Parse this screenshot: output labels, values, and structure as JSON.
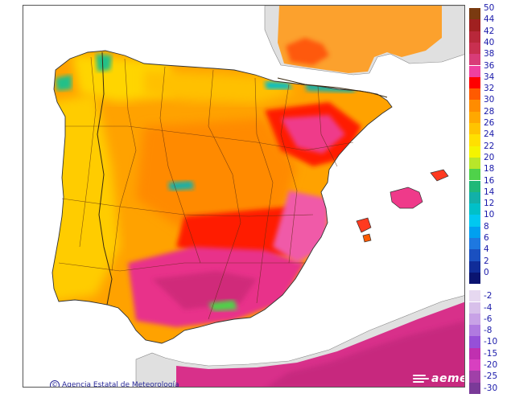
{
  "map": {
    "region": "Iberian Peninsula and Balearic Islands",
    "sea_color": "#ffffff",
    "background_land_color": "#e6e6e6",
    "border_color": "#444444"
  },
  "credit": {
    "text": "Agencia Estatal de Meteorología",
    "symbol": "©"
  },
  "logo": {
    "text": "aemet"
  },
  "legend": {
    "positive_scale": [
      {
        "label": "50",
        "color": "#7a3a10"
      },
      {
        "label": "44",
        "color": "#a02020"
      },
      {
        "label": "42",
        "color": "#b8283a"
      },
      {
        "label": "40",
        "color": "#c83050"
      },
      {
        "label": "38",
        "color": "#d83c78"
      },
      {
        "label": "36",
        "color": "#ef40a0"
      },
      {
        "label": "34",
        "color": "#ff0000"
      },
      {
        "label": "32",
        "color": "#ff5a00"
      },
      {
        "label": "30",
        "color": "#ff8c00"
      },
      {
        "label": "28",
        "color": "#ffa800"
      },
      {
        "label": "26",
        "color": "#ffc400"
      },
      {
        "label": "24",
        "color": "#ffe000"
      },
      {
        "label": "22",
        "color": "#f4f400"
      },
      {
        "label": "20",
        "color": "#b8e62a"
      },
      {
        "label": "18",
        "color": "#4fd24a"
      },
      {
        "label": "16",
        "color": "#20b878"
      },
      {
        "label": "14",
        "color": "#12b0a8"
      },
      {
        "label": "12",
        "color": "#00c0c8"
      },
      {
        "label": "10",
        "color": "#00c8f0"
      },
      {
        "label": "8",
        "color": "#00a0f0"
      },
      {
        "label": "6",
        "color": "#1e78e0"
      },
      {
        "label": "4",
        "color": "#1a50c0"
      },
      {
        "label": "2",
        "color": "#102c98"
      },
      {
        "label": "0",
        "color": "#0a1470"
      }
    ],
    "negative_scale": [
      {
        "label": "-2",
        "color": "#e6d8f0"
      },
      {
        "label": "-4",
        "color": "#d8c0ea"
      },
      {
        "label": "-6",
        "color": "#c8a2e6"
      },
      {
        "label": "-8",
        "color": "#b07ae0"
      },
      {
        "label": "-10",
        "color": "#9650d8"
      },
      {
        "label": "-15",
        "color": "#c030b0"
      },
      {
        "label": "-20",
        "color": "#d840c0"
      },
      {
        "label": "-25",
        "color": "#a040a8"
      },
      {
        "label": "-30",
        "color": "#7a3a98"
      }
    ]
  }
}
